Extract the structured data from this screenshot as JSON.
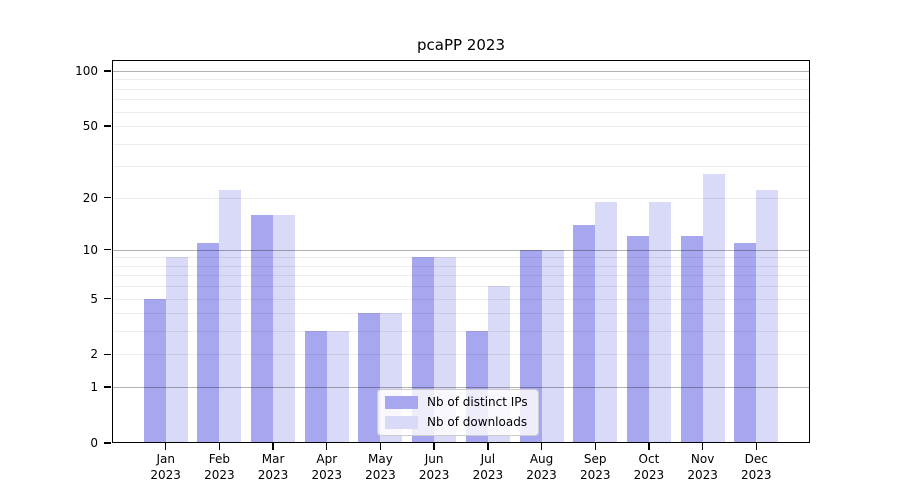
{
  "chart_data": {
    "type": "bar",
    "title": "pcaPP 2023",
    "months": [
      "Jan",
      "Feb",
      "Mar",
      "Apr",
      "May",
      "Jun",
      "Jul",
      "Aug",
      "Sep",
      "Oct",
      "Nov",
      "Dec"
    ],
    "year": "2023",
    "series": [
      {
        "name": "Nb of distinct IPs",
        "color": "#a7a7ef",
        "values": [
          5,
          11,
          16,
          3,
          4,
          9,
          3,
          10,
          14,
          12,
          12,
          11
        ]
      },
      {
        "name": "Nb of downloads",
        "color": "#d9d9f8",
        "values": [
          9,
          22,
          16,
          3,
          4,
          9,
          6,
          10,
          19,
          19,
          27,
          22
        ]
      }
    ],
    "y_ticks": [
      0,
      1,
      2,
      5,
      10,
      20,
      50,
      100
    ],
    "y_major_gridlines": [
      1,
      10,
      100
    ],
    "y_minor_gridlines": [
      3,
      4,
      6,
      7,
      8,
      9,
      30,
      40,
      60,
      70,
      80,
      90
    ],
    "scale": "log10(1+y)",
    "ylim": [
      0,
      115
    ],
    "xlabel": "",
    "ylabel": "",
    "grid": true,
    "legend_position": "lower center"
  }
}
